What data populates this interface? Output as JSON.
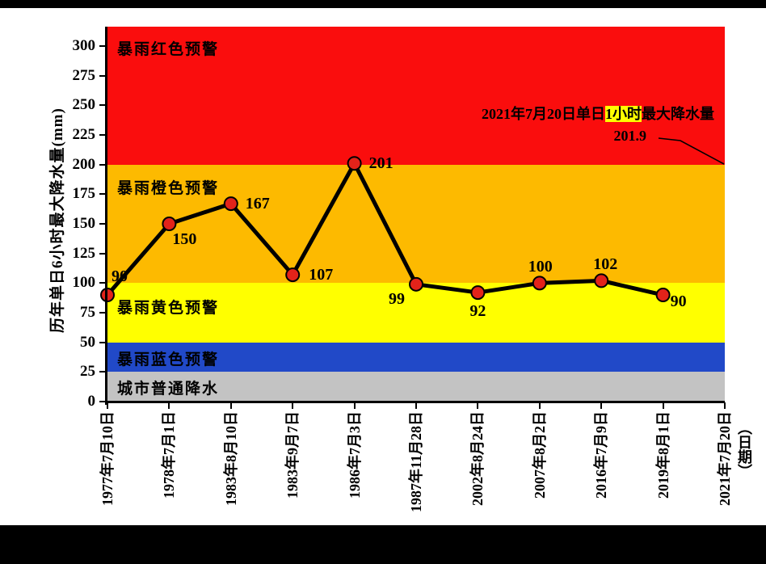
{
  "figure": {
    "background": "#FFFFFF",
    "top_bar_color": "#000000",
    "bottom_bar_color": "#000000"
  },
  "chart_data": {
    "type": "line",
    "title": "",
    "ylabel": "历年单日6小时最大降水量(mm)",
    "xlabel": "（日期）",
    "ylim": [
      0,
      316.4
    ],
    "yticks": [
      0,
      25,
      50,
      75,
      100,
      125,
      150,
      175,
      200,
      225,
      250,
      275,
      300
    ],
    "x_tick_labels": [
      "1977年7月10日",
      "1978年7月1日",
      "1983年8月10日",
      "1983年9月7日",
      "1986年7月3日",
      "1987年11月28日",
      "2002年8月24日",
      "2007年8月2日",
      "2016年7月9日",
      "2019年8月1日",
      "2021年7月20日"
    ],
    "series": [
      {
        "name": "历年单日6小时最大降水量",
        "points": [
          {
            "date": "1977年7月10日",
            "value": 90,
            "label": "90",
            "label_dx": 5,
            "label_dy": -34
          },
          {
            "date": "1978年7月1日",
            "value": 150,
            "label": "150",
            "label_dx": 4,
            "label_dy": 8
          },
          {
            "date": "1983年8月10日",
            "value": 167,
            "label": "167",
            "label_dx": 18,
            "label_dy": -11
          },
          {
            "date": "1983年9月7日",
            "value": 107,
            "label": "107",
            "label_dx": 20,
            "label_dy": -11
          },
          {
            "date": "1986年7月3日",
            "value": 201,
            "label": "201",
            "label_dx": 18,
            "label_dy": -11
          },
          {
            "date": "1987年11月28日",
            "value": 99,
            "label": "99",
            "label_dx": -34,
            "label_dy": 7
          },
          {
            "date": "2002年8月24日",
            "value": 92,
            "label": "92",
            "label_dx": -10,
            "label_dy": 12
          },
          {
            "date": "2007年8月2日",
            "value": 100,
            "label": "100",
            "label_dx": -14,
            "label_dy": -31
          },
          {
            "date": "2016年7月9日",
            "value": 102,
            "label": "102",
            "label_dx": -10,
            "label_dy": -31
          },
          {
            "date": "2019年8月1日",
            "value": 90,
            "label": "90",
            "label_dx": 9,
            "label_dy": -3
          }
        ]
      }
    ],
    "bands": [
      {
        "key": "red",
        "label": "暴雨红色预警",
        "from": 200,
        "to": 316.4,
        "color": "#FA0D0D",
        "label_dy": 13
      },
      {
        "key": "orange",
        "label": "暴雨橙色预警",
        "from": 100,
        "to": 200,
        "color": "#FDBA00",
        "label_dy": 14
      },
      {
        "key": "yellow",
        "label": "暴雨黄色预警",
        "from": 50,
        "to": 100,
        "color": "#FFFF00",
        "label_dy": 16
      },
      {
        "key": "blue",
        "label": "暴雨蓝色预警",
        "from": 25,
        "to": 50,
        "color": "#2149C8",
        "label_dy": 6
      },
      {
        "key": "gray",
        "label": "城市普通降水",
        "from": 0,
        "to": 25,
        "color": "#C3C3C3",
        "label_dy": 6
      }
    ],
    "annotation": {
      "line1_prefix": "2021年7月20日单日",
      "line1_highlight": "1小时",
      "line1_suffix": "最大降水量",
      "highlight_color": "#FFFF00",
      "line2": "201.9",
      "leader_points": [
        [
          815,
          171
        ],
        [
          842,
          174
        ],
        [
          896,
          203
        ]
      ]
    },
    "style": {
      "line_color": "#000000",
      "line_width": 5,
      "marker_fill": "#E2231A",
      "marker_edge": "#000000",
      "marker_radius": 8,
      "axis_color": "#000000",
      "text_color": "#000000",
      "grid": false,
      "legend": "none"
    }
  }
}
